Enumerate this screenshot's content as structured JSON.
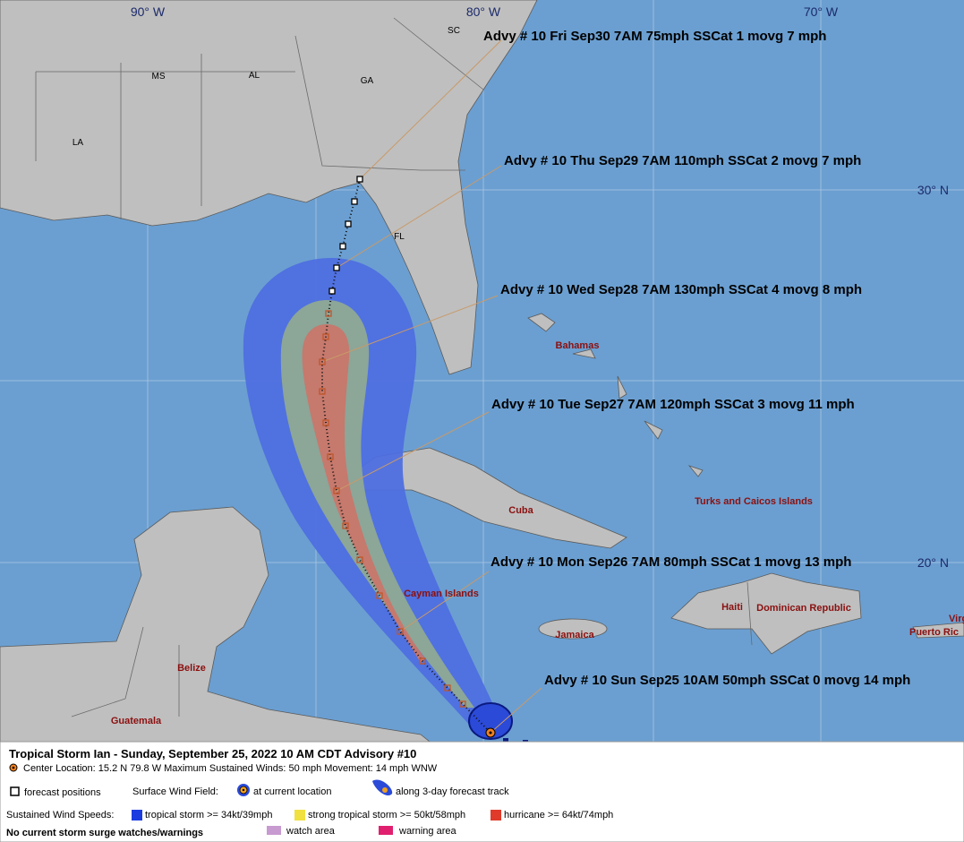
{
  "map": {
    "grid_labels": [
      "90° W",
      "80° W",
      "70° W",
      "30° N",
      "20° N"
    ],
    "region_labels": [
      "SC",
      "MS",
      "AL",
      "GA",
      "LA",
      "FL"
    ],
    "place_labels": [
      "Bahamas",
      "Cuba",
      "Turks and Caicos Islands",
      "Cayman Islands",
      "Haiti",
      "Dominican Republic",
      "Jamaica",
      "Belize",
      "Guatemala",
      "Virg",
      "Puerto Ric"
    ],
    "advisories": [
      "Advy # 10 Fri Sep30 7AM  75mph SSCat 1 movg 7 mph",
      "Advy # 10 Thu Sep29 7AM  110mph SSCat 2 movg 7 mph",
      "Advy # 10 Wed Sep28 7AM  130mph SSCat 4 movg 8 mph",
      "Advy # 10 Tue Sep27 7AM  120mph SSCat 3 movg 11 mph",
      "Advy # 10 Mon Sep26 7AM  80mph SSCat 1 movg 13 mph",
      "Advy # 10 Sun Sep25 10AM  50mph SSCat 0 movg 14 mph"
    ]
  },
  "legend": {
    "title": "Tropical Storm Ian  -  Sunday, September 25, 2022  10 AM CDT   Advisory #10",
    "details": "Center Location: 15.2 N  79.8 W  Maximum Sustained Winds: 50 mph  Movement: 14 mph WNW",
    "forecast_positions": "forecast positions",
    "wind_field_label": "Surface Wind Field:",
    "at_current_location": "at current location",
    "along_track": "along 3-day forecast track",
    "wind_speeds_label": "Sustained Wind Speeds:",
    "tropical_storm": "tropical storm >= 34kt/39mph",
    "strong_tropical_storm": "strong tropical storm >= 50kt/58mph",
    "hurricane": "hurricane >= 64kt/74mph",
    "surge_note": "No current storm surge watches/warnings",
    "watch_area": "watch area",
    "warning_area": "warning area"
  }
}
